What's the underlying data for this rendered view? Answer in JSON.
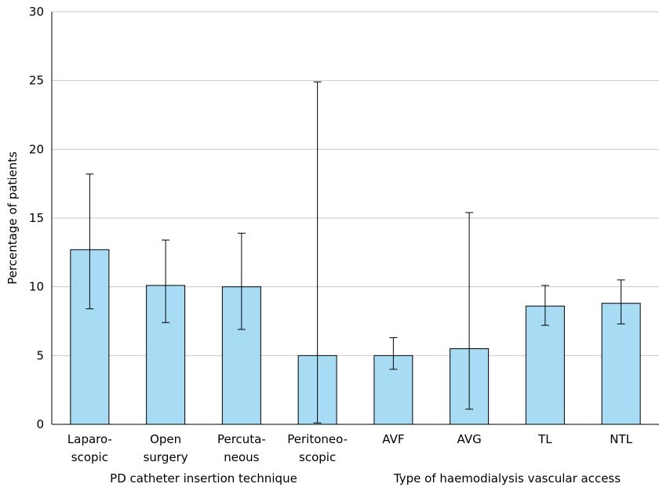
{
  "chart_data": {
    "type": "bar",
    "ylabel": "Percentage of patients",
    "ylim": [
      0,
      30
    ],
    "yticks": [
      "0",
      "5",
      "10",
      "15",
      "20",
      "25",
      "30"
    ],
    "grid": "horizontal",
    "bar_color": "#a8dcf5",
    "groups": [
      {
        "label": "PD catheter insertion technique",
        "categories": [
          0,
          1,
          2,
          3
        ]
      },
      {
        "label": "Type of haemodialysis vascular access",
        "categories": [
          4,
          5,
          6,
          7
        ]
      }
    ],
    "categories": [
      {
        "lines": [
          "Laparo-",
          "scopic"
        ],
        "value": 12.7,
        "err_low": 8.4,
        "err_high": 18.2
      },
      {
        "lines": [
          "Open",
          "surgery"
        ],
        "value": 10.1,
        "err_low": 7.4,
        "err_high": 13.4
      },
      {
        "lines": [
          "Percuta-",
          "neous"
        ],
        "value": 10.0,
        "err_low": 6.9,
        "err_high": 13.9
      },
      {
        "lines": [
          "Peritoneo-",
          "scopic"
        ],
        "value": 5.0,
        "err_low": 0.1,
        "err_high": 24.9
      },
      {
        "lines": [
          "AVF"
        ],
        "value": 5.0,
        "err_low": 4.0,
        "err_high": 6.3
      },
      {
        "lines": [
          "AVG"
        ],
        "value": 5.5,
        "err_low": 1.1,
        "err_high": 15.4
      },
      {
        "lines": [
          "TL"
        ],
        "value": 8.6,
        "err_low": 7.2,
        "err_high": 10.1
      },
      {
        "lines": [
          "NTL"
        ],
        "value": 8.8,
        "err_low": 7.3,
        "err_high": 10.5
      }
    ]
  }
}
